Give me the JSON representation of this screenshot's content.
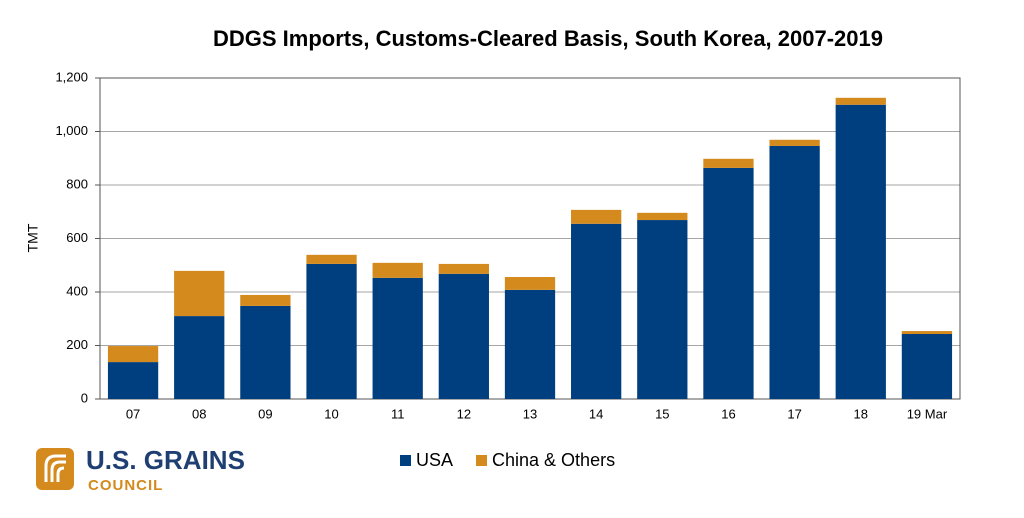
{
  "chart_data": {
    "type": "stacked_bar",
    "title": "DDGS Imports, Customs-Cleared Basis, South Korea, 2007-2019",
    "y_label": "TMT",
    "categories": [
      "07",
      "08",
      "09",
      "10",
      "11",
      "12",
      "13",
      "14",
      "15",
      "16",
      "17",
      "18",
      "19 Mar"
    ],
    "series": [
      {
        "name": "USA",
        "color": "#003f7f",
        "values": [
          138,
          310,
          348,
          505,
          453,
          468,
          408,
          655,
          669,
          864,
          946,
          1100,
          243
        ]
      },
      {
        "name": "China & Others",
        "color": "#d48a1c",
        "values": [
          60,
          169,
          41,
          34,
          56,
          37,
          48,
          52,
          27,
          34,
          23,
          26,
          11
        ]
      }
    ],
    "ylim": [
      0,
      1200
    ],
    "yticks": [
      0,
      200,
      400,
      600,
      800,
      {
        "value": 1000,
        "label": "1,000"
      },
      {
        "value": 1200,
        "label": "1,200"
      }
    ],
    "grid": true,
    "legend": "bottom"
  },
  "logo": {
    "name": "U.S. GRAINS",
    "sub": "COUNCIL"
  }
}
